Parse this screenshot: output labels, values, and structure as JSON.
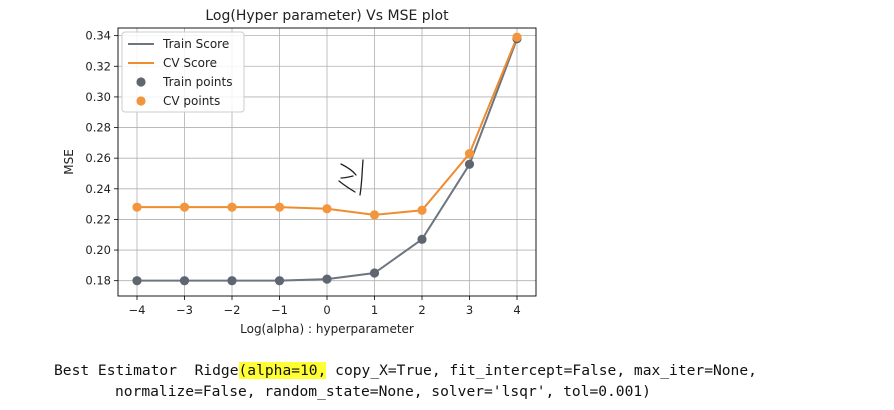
{
  "chart_data": {
    "type": "line",
    "title": "Log(Hyper parameter) Vs MSE plot",
    "xlabel": "Log(alpha) : hyperparameter",
    "ylabel": "MSE",
    "x": [
      -4,
      -3,
      -2,
      -1,
      0,
      1,
      2,
      3,
      4
    ],
    "xlim": [
      -4.4,
      4.4
    ],
    "ylim": [
      0.17,
      0.345
    ],
    "xticks": [
      "−4",
      "−3",
      "−2",
      "−1",
      "0",
      "1",
      "2",
      "3",
      "4"
    ],
    "yticks": [
      "0.18",
      "0.20",
      "0.22",
      "0.24",
      "0.26",
      "0.28",
      "0.30",
      "0.32",
      "0.34"
    ],
    "grid": true,
    "legend_position": "top-left",
    "series": [
      {
        "name": "Train Score",
        "kind": "line",
        "color": "#6d7580",
        "values": [
          0.18,
          0.18,
          0.18,
          0.18,
          0.181,
          0.185,
          0.207,
          0.256,
          0.338
        ]
      },
      {
        "name": "CV Score",
        "kind": "line",
        "color": "#f08c30",
        "values": [
          0.228,
          0.228,
          0.228,
          0.228,
          0.227,
          0.223,
          0.226,
          0.263,
          0.339
        ]
      },
      {
        "name": "Train points",
        "kind": "scatter",
        "color": "#5f6670",
        "values": [
          0.18,
          0.18,
          0.18,
          0.18,
          0.181,
          0.185,
          0.207,
          0.256,
          0.338
        ]
      },
      {
        "name": "CV points",
        "kind": "scatter",
        "color": "#f2953c",
        "values": [
          0.228,
          0.228,
          0.228,
          0.228,
          0.227,
          0.223,
          0.226,
          0.263,
          0.339
        ]
      }
    ]
  },
  "output": {
    "line1_prefix": "Best Estimator  Ridge",
    "line1_highlight": "(alpha=10,",
    "line1_suffix": " copy_X=True, fit_intercept=False, max_iter=None,",
    "line2": "normalize=False, random_state=None, solver='lsqr', tol=0.001)"
  }
}
